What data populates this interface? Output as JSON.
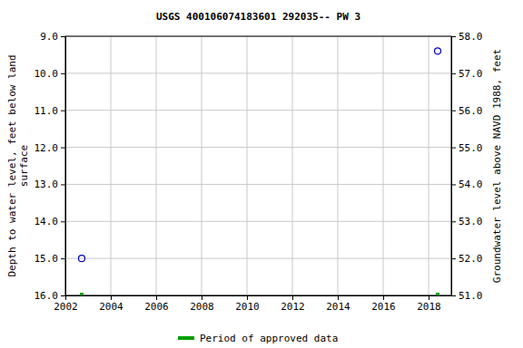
{
  "chart_data": {
    "type": "scatter",
    "title": "USGS 400106074183601 292035-- PW 3",
    "ylabel": [
      "Depth to water level, feet below land",
      "surface"
    ],
    "y2label": "Groundwater level above NAVD 1988, feet",
    "xlim": [
      2002,
      2019
    ],
    "xticks": [
      2002,
      2004,
      2006,
      2008,
      2010,
      2012,
      2014,
      2016,
      2018
    ],
    "ylim": [
      9,
      16
    ],
    "yticks": [
      {
        "value": 9,
        "label": "9.0"
      },
      {
        "value": 10,
        "label": "10.0"
      },
      {
        "value": 11,
        "label": "11.0"
      },
      {
        "value": 12,
        "label": "12.0"
      },
      {
        "value": 13,
        "label": "13.0"
      },
      {
        "value": 14,
        "label": "14.0"
      },
      {
        "value": 15,
        "label": "15.0"
      },
      {
        "value": 16,
        "label": "16.0"
      }
    ],
    "y2lim": [
      58,
      51
    ],
    "y2ticks": [
      {
        "value": 58,
        "label": "58.0"
      },
      {
        "value": 57,
        "label": "57.0"
      },
      {
        "value": 56,
        "label": "56.0"
      },
      {
        "value": 55,
        "label": "55.0"
      },
      {
        "value": 54,
        "label": "54.0"
      },
      {
        "value": 53,
        "label": "53.0"
      },
      {
        "value": 52,
        "label": "52.0"
      },
      {
        "value": 51,
        "label": "51.0"
      }
    ],
    "grid": true,
    "legend": "bottom",
    "series": [
      {
        "color": "#0000cc",
        "marker": "circle",
        "x": [
          2002.72,
          2018.4
        ],
        "values": [
          15.0,
          9.4
        ]
      },
      {
        "name": "Period of approved data",
        "color": "#00a000",
        "marker": "square",
        "x": [
          2002.72,
          2018.4
        ],
        "values": [
          16,
          16
        ]
      }
    ]
  }
}
